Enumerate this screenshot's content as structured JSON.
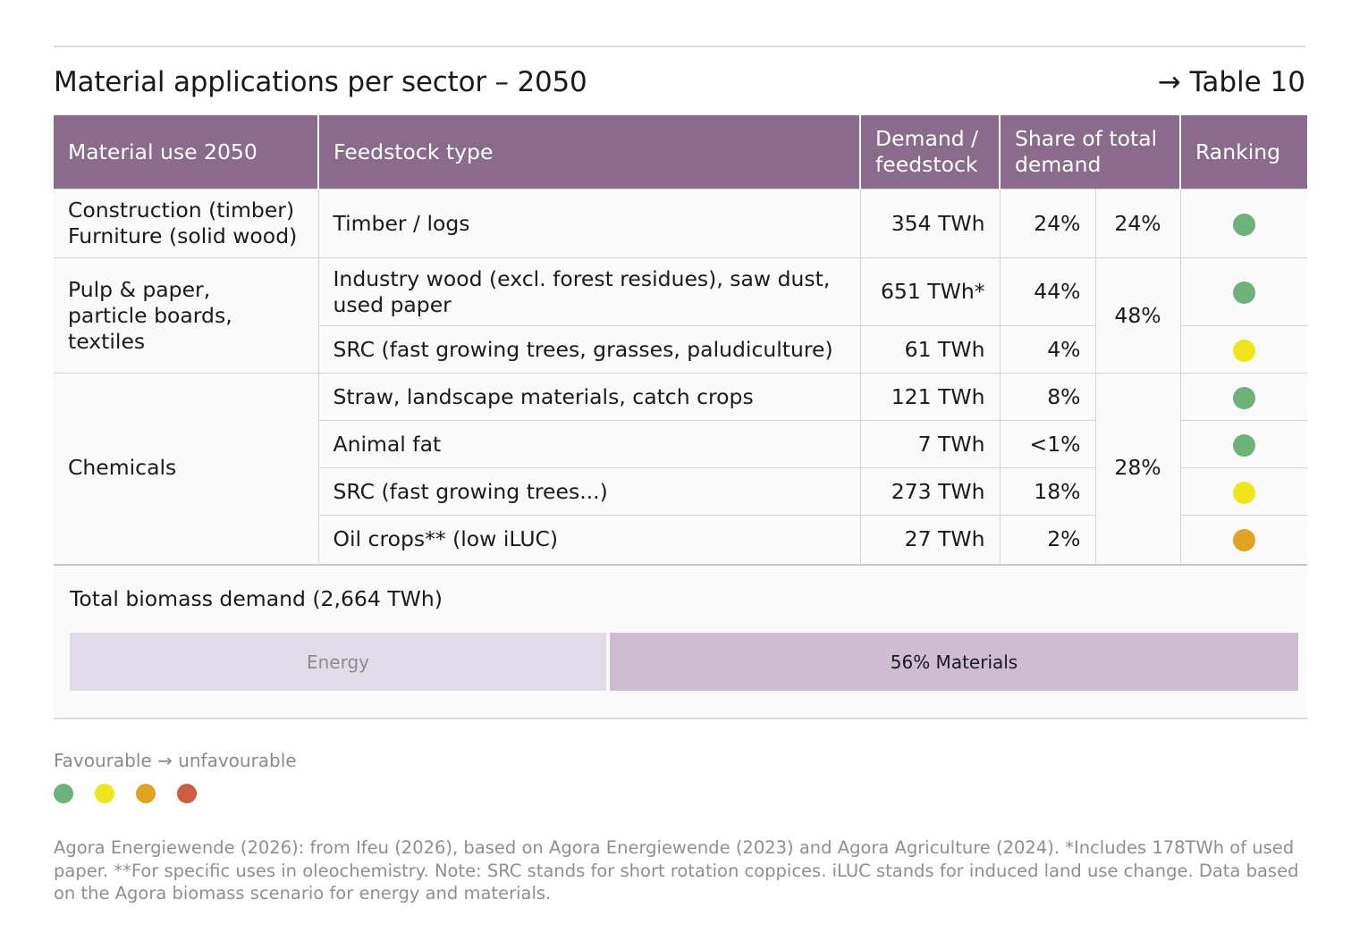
{
  "header": {
    "title": "Material applications per sector – 2050",
    "table_ref": "→ Table 10"
  },
  "table": {
    "columns": {
      "material_use": "Material use 2050",
      "feedstock": "Feedstock type",
      "demand_line1": "Demand /",
      "demand_line2": "feedstock",
      "share_line1": "Share of total",
      "share_line2": "demand",
      "ranking": "Ranking"
    },
    "groups": {
      "construction": {
        "line1": "Construction (timber)",
        "line2": "Furniture (solid wood)",
        "group_share": "24%"
      },
      "pulp": {
        "line1": "Pulp & paper,",
        "line2": "particle boards,",
        "line3": "textiles",
        "group_share": "48%"
      },
      "chemicals": {
        "label": "Chemicals",
        "group_share": "28%"
      }
    },
    "rows": [
      {
        "feedstock": "Timber / logs",
        "demand": "354 TWh",
        "share": "24%",
        "ranking": "favourable"
      },
      {
        "feedstock_line1": "Industry wood (excl. forest residues), saw dust,",
        "feedstock_line2": "used paper",
        "demand": "651 TWh*",
        "share": "44%",
        "ranking": "favourable"
      },
      {
        "feedstock": "SRC (fast growing trees, grasses, paludiculture)",
        "demand": "61 TWh",
        "share": "4%",
        "ranking": "moderate"
      },
      {
        "feedstock": "Straw, landscape materials, catch crops",
        "demand": "121 TWh",
        "share": "8%",
        "ranking": "favourable"
      },
      {
        "feedstock": "Animal fat",
        "demand": "7 TWh",
        "share": "<1%",
        "ranking": "favourable"
      },
      {
        "feedstock": "SRC (fast growing trees...)",
        "demand": "273 TWh",
        "share": "18%",
        "ranking": "moderate"
      },
      {
        "feedstock": "Oil crops** (low iLUC)",
        "demand": "27 TWh",
        "share": "2%",
        "ranking": "less-favourable"
      }
    ]
  },
  "total": {
    "label": "Total biomass demand (2,664 TWh)",
    "energy_label": "Energy",
    "materials_label": "56% Materials",
    "materials_share": 56
  },
  "legend": {
    "title": "Favourable → unfavourable",
    "scale": [
      "favourable",
      "moderate",
      "less-favourable",
      "unfavourable"
    ]
  },
  "colors": {
    "favourable": "#6db27a",
    "moderate": "#efe51c",
    "less-favourable": "#e1a321",
    "unfavourable": "#cf5c44",
    "header_bg": "#8b6b8c"
  },
  "footnote": "Agora Energiewende (2026): from Ifeu (2026), based on Agora Energiewende (2023) and Agora Agriculture (2024). *Includes 178TWh of used paper. **For specific uses in oleochemistry. Note: SRC stands for short rotation coppices. iLUC stands for induced land use change. Data based on the Agora biomass scenario for energy and materials."
}
